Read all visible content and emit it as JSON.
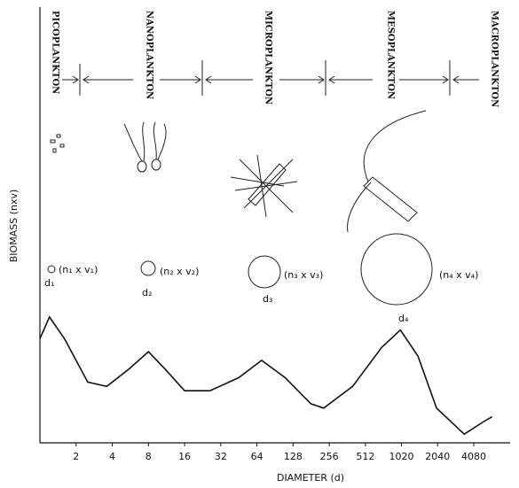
{
  "chart_data": {
    "type": "line",
    "x_label": "DIAMETER (d)",
    "y_label": "BIOMASS (nxv)",
    "xscale": "log",
    "xlim": [
      1,
      8192
    ],
    "xticks": [
      2,
      4,
      8,
      16,
      32,
      64,
      128,
      256,
      512,
      1020,
      2040,
      4080
    ],
    "ylim": [
      0,
      100
    ],
    "color": "#111111",
    "x": [
      1,
      1.2,
      1.6,
      2.5,
      3.6,
      5.5,
      8,
      11,
      16,
      26,
      45,
      70,
      110,
      180,
      230,
      400,
      700,
      1000,
      1400,
      2000,
      3400,
      5000,
      5800
    ],
    "values": [
      24,
      29,
      24,
      14,
      13,
      17,
      21,
      17,
      12,
      12,
      15,
      19,
      15,
      9,
      8,
      13,
      22,
      26,
      20,
      8,
      2,
      5,
      6
    ],
    "size_classes": [
      "PICOPLANKTON",
      "NANOPLANKTON",
      "MICROPLANKTON",
      "MESOPLANKTON",
      "MACROPLANKTON"
    ],
    "particles": [
      {
        "label": "(n₁ x v₁)",
        "diameter": "d₁"
      },
      {
        "label": "(n₂ x v₂)",
        "diameter": "d₂"
      },
      {
        "label": "(n₃ x v₃)",
        "diameter": "d₃"
      },
      {
        "label": "(n₄ x v₄)",
        "diameter": "d₄"
      }
    ]
  }
}
